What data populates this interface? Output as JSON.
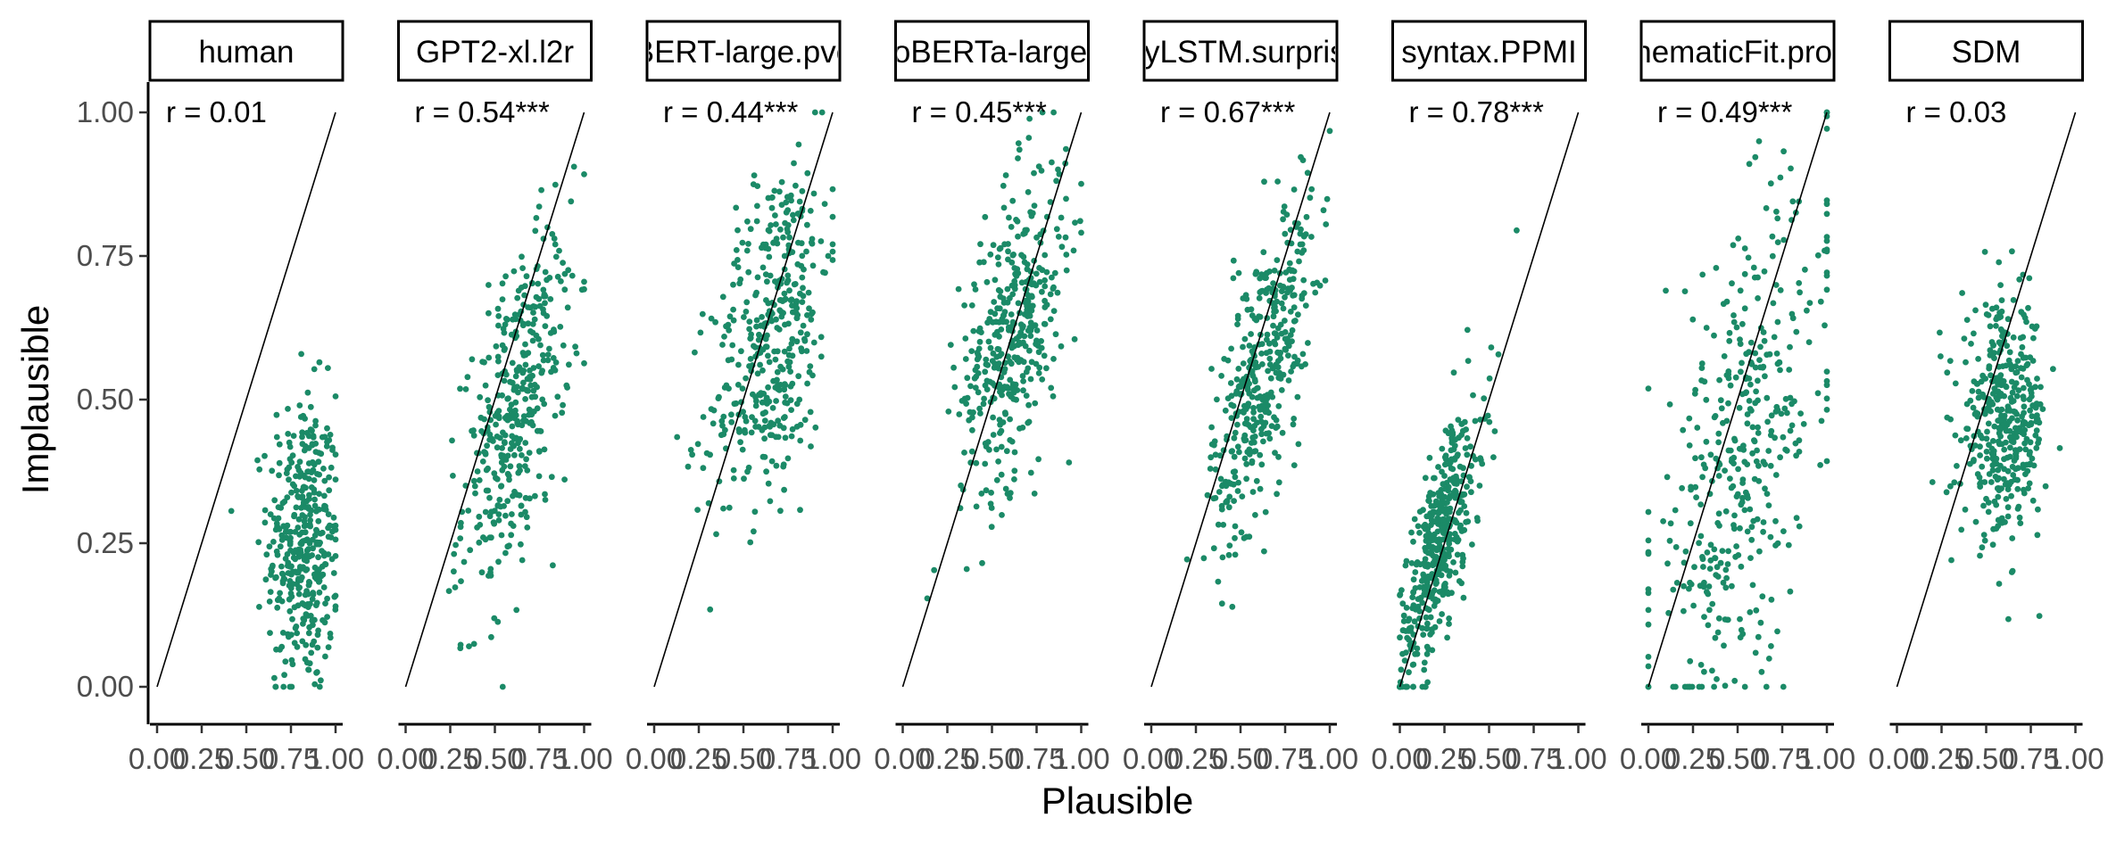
{
  "chart_data": {
    "type": "scatter",
    "xlabel": "Plausible",
    "ylabel": "Implausible",
    "xlim": [
      0,
      1
    ],
    "ylim": [
      0,
      1
    ],
    "x_ticks": [
      "0.00",
      "0.25",
      "0.50",
      "0.75",
      "1.00"
    ],
    "y_ticks": [
      "0.00",
      "0.25",
      "0.50",
      "0.75",
      "1.00"
    ],
    "reference_line": "y = x",
    "grid": false,
    "point_color": "#1b8a67",
    "facets": [
      {
        "name": "human",
        "r_label": "r = 0.01",
        "r": 0.01,
        "approx_points": 400,
        "x_center": 0.82,
        "x_spread": 0.1,
        "y_center": 0.25,
        "y_spread": 0.13
      },
      {
        "name": "GPT2-xl.l2r",
        "r_label": "r = 0.54***",
        "r": 0.54,
        "approx_points": 400,
        "x_center": 0.62,
        "x_spread": 0.15,
        "y_center": 0.48,
        "y_spread": 0.15
      },
      {
        "name": "BERT-large.pve",
        "r_label": "r = 0.44***",
        "r": 0.44,
        "approx_points": 400,
        "x_center": 0.66,
        "x_spread": 0.17,
        "y_center": 0.62,
        "y_spread": 0.16
      },
      {
        "name": "RoBERTa-large.p",
        "r_label": "r = 0.45***",
        "r": 0.45,
        "approx_points": 400,
        "x_center": 0.62,
        "x_spread": 0.15,
        "y_center": 0.62,
        "y_spread": 0.14
      },
      {
        "name": "tinyLSTM.surprisal",
        "r_label": "r = 0.67***",
        "r": 0.67,
        "approx_points": 400,
        "x_center": 0.62,
        "x_spread": 0.14,
        "y_center": 0.55,
        "y_spread": 0.15
      },
      {
        "name": "syntax.PPMI",
        "r_label": "r = 0.78***",
        "r": 0.78,
        "approx_points": 450,
        "x_center": 0.22,
        "x_spread": 0.12,
        "y_center": 0.25,
        "y_spread": 0.13
      },
      {
        "name": "thematicFit.prob",
        "r_label": "r = 0.49***",
        "r": 0.49,
        "approx_points": 400,
        "x_center": 0.52,
        "x_spread": 0.27,
        "y_center": 0.4,
        "y_spread": 0.22
      },
      {
        "name": "SDM",
        "r_label": "r = 0.03",
        "r": 0.03,
        "approx_points": 400,
        "x_center": 0.6,
        "x_spread": 0.12,
        "y_center": 0.46,
        "y_spread": 0.1
      }
    ]
  }
}
